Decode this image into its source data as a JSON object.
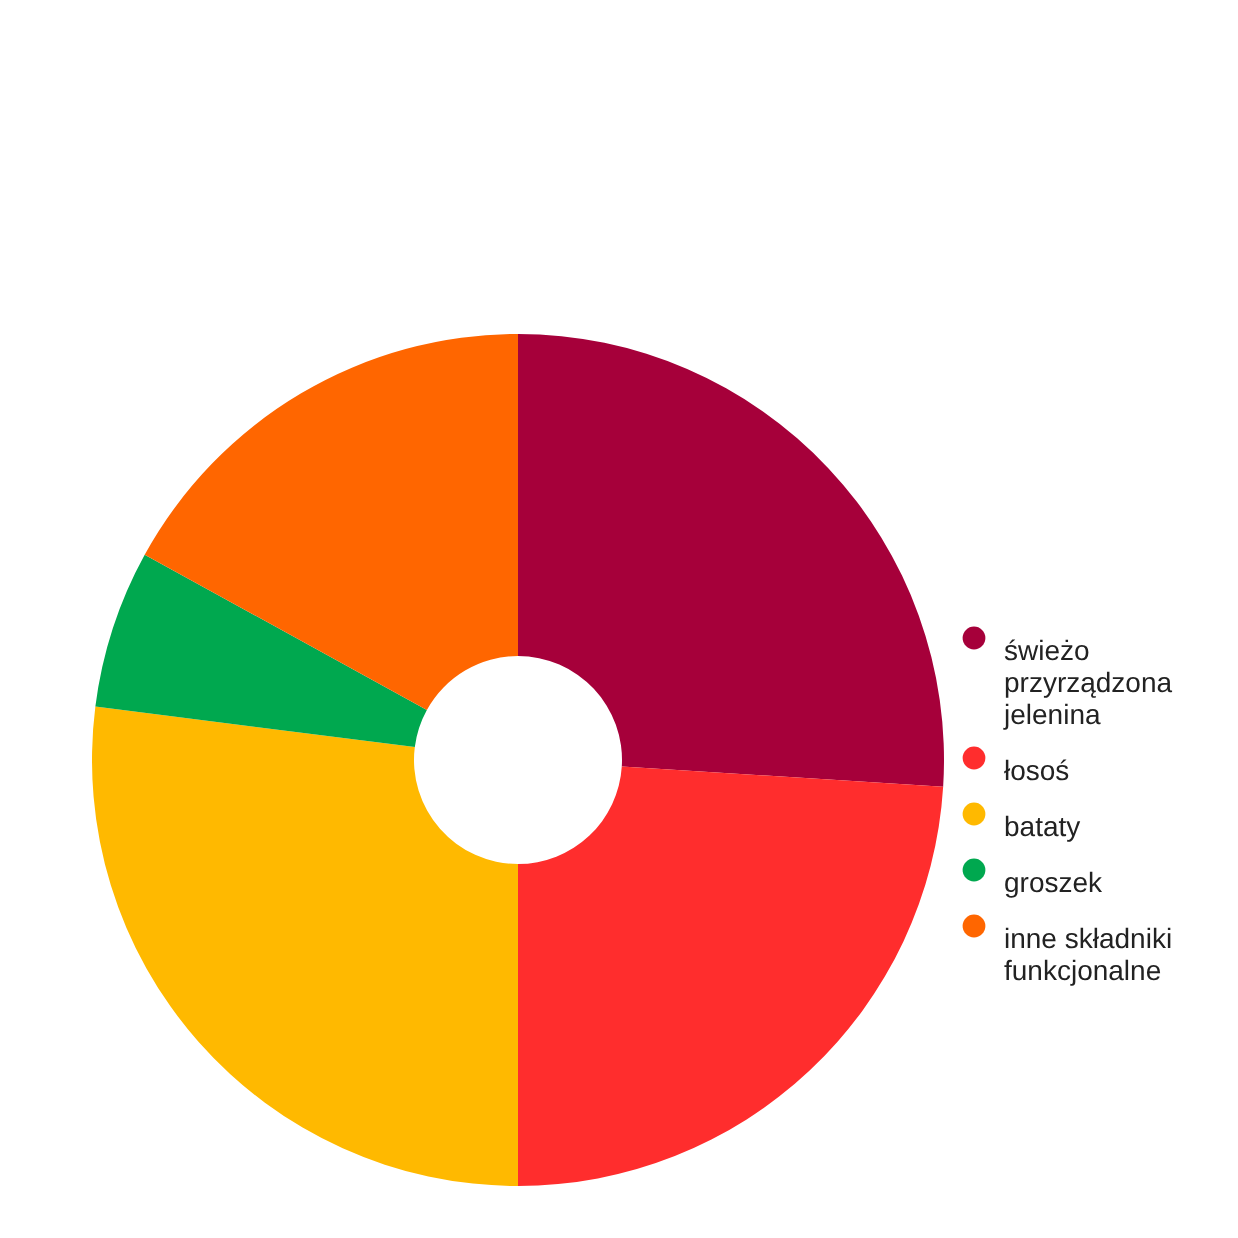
{
  "chart_data": {
    "type": "donut",
    "categories": [
      "świeżo przyrządzona jelenina",
      "łosoś",
      "bataty",
      "groszek",
      "inne składniki funkcjonalne"
    ],
    "values": [
      26,
      24,
      27,
      6,
      17
    ],
    "colors": [
      "#a6003a",
      "#ff2d2d",
      "#ffb900",
      "#00a84f",
      "#ff6600"
    ],
    "legend": "right"
  }
}
